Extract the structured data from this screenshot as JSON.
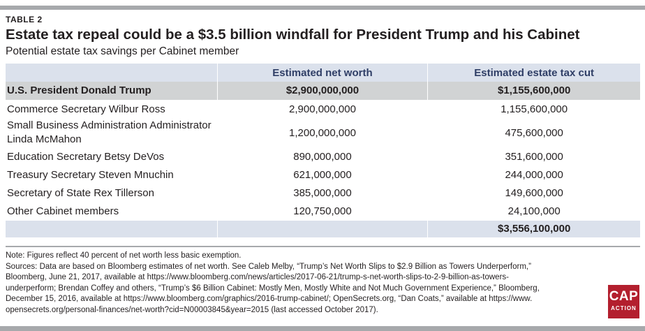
{
  "table_label": "TABLE 2",
  "title": "Estate tax repeal could be a $3.5 billion windfall for President Trump and his Cabinet",
  "subtitle": "Potential estate tax savings per Cabinet member",
  "table": {
    "headers": [
      "",
      "Estimated net worth",
      "Estimated estate tax cut"
    ],
    "rows": [
      {
        "name": "U.S. President Donald Trump",
        "net_worth": "$2,900,000,000",
        "tax_cut": "$1,155,600,000"
      },
      {
        "name": "Commerce Secretary Wilbur Ross",
        "net_worth": "2,900,000,000",
        "tax_cut": "1,155,600,000"
      },
      {
        "name_line1": "Small Business Administration Administrator",
        "name_line2": "Linda McMahon",
        "net_worth": "1,200,000,000",
        "tax_cut": "475,600,000"
      },
      {
        "name": "Education Secretary Betsy DeVos",
        "net_worth": "890,000,000",
        "tax_cut": "351,600,000"
      },
      {
        "name": "Treasury Secretary Steven Mnuchin",
        "net_worth": "621,000,000",
        "tax_cut": "244,000,000"
      },
      {
        "name": "Secretary of State Rex Tillerson",
        "net_worth": "385,000,000",
        "tax_cut": "149,600,000"
      },
      {
        "name": "Other Cabinet members",
        "net_worth": "120,750,000",
        "tax_cut": "24,100,000"
      }
    ],
    "total": {
      "name": "",
      "net_worth": "",
      "tax_cut": "$3,556,100,000"
    }
  },
  "note": "Note: Figures reflect 40 percent of net worth less basic exemption.",
  "sources_lines": [
    "Sources: Data are based on Bloomberg estimates of net worth. See Caleb Melby, “Trump’s Net Worth Slips to $2.9 Billion as Towers Underperform,”",
    "Bloomberg, June 21, 2017, available at https://www.bloomberg.com/news/articles/2017-06-21/trump-s-net-worth-slips-to-2-9-billion-as-towers-",
    "underperform; Brendan Coffey and others, “Trump’s $6 Billion Cabinet: Mostly Men, Mostly White and Not Much Government Experience,” Bloomberg,",
    "December 15, 2016, available at https://www.bloomberg.com/graphics/2016-trump-cabinet/; OpenSecrets.org, “Dan Coats,” available at https://www.",
    "opensecrets.org/personal-finances/net-worth?cid=N00003845&year=2015 (last accessed October 2017)."
  ],
  "logo": {
    "main": "CAP",
    "sub": "ACTION",
    "color": "#b31f2e"
  },
  "colors": {
    "header_fill": "#dbe1ec",
    "header_text": "#2f3e66",
    "highlight_row": "#d1d3d4",
    "rule": "#a7a9ac"
  }
}
